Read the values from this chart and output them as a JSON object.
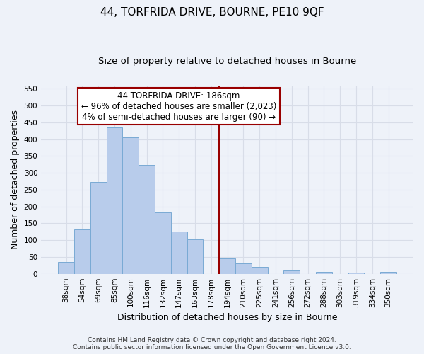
{
  "title": "44, TORFRIDA DRIVE, BOURNE, PE10 9QF",
  "subtitle": "Size of property relative to detached houses in Bourne",
  "xlabel": "Distribution of detached houses by size in Bourne",
  "ylabel": "Number of detached properties",
  "bar_labels": [
    "38sqm",
    "54sqm",
    "69sqm",
    "85sqm",
    "100sqm",
    "116sqm",
    "132sqm",
    "147sqm",
    "163sqm",
    "178sqm",
    "194sqm",
    "210sqm",
    "225sqm",
    "241sqm",
    "256sqm",
    "272sqm",
    "288sqm",
    "303sqm",
    "319sqm",
    "334sqm",
    "350sqm"
  ],
  "bar_values": [
    35,
    132,
    273,
    435,
    405,
    323,
    183,
    126,
    103,
    0,
    46,
    30,
    21,
    0,
    9,
    0,
    5,
    0,
    3,
    0,
    5
  ],
  "bar_color_normal": "#b8cceb",
  "bar_color_edge": "#7aaad4",
  "vline_x_index": 10,
  "vline_color": "#990000",
  "annotation_line1": "44 TORFRIDA DRIVE: 186sqm",
  "annotation_line2": "← 96% of detached houses are smaller (2,023)",
  "annotation_line3": "4% of semi-detached houses are larger (90) →",
  "annotation_box_color": "#ffffff",
  "annotation_box_edgecolor": "#990000",
  "ylim": [
    0,
    560
  ],
  "yticks": [
    0,
    50,
    100,
    150,
    200,
    250,
    300,
    350,
    400,
    450,
    500,
    550
  ],
  "footer_line1": "Contains HM Land Registry data © Crown copyright and database right 2024.",
  "footer_line2": "Contains public sector information licensed under the Open Government Licence v3.0.",
  "background_color": "#eef2f9",
  "grid_color": "#d8dde8",
  "title_fontsize": 11,
  "subtitle_fontsize": 9.5,
  "axis_label_fontsize": 9,
  "tick_fontsize": 7.5,
  "footer_fontsize": 6.5,
  "annotation_fontsize": 8.5
}
